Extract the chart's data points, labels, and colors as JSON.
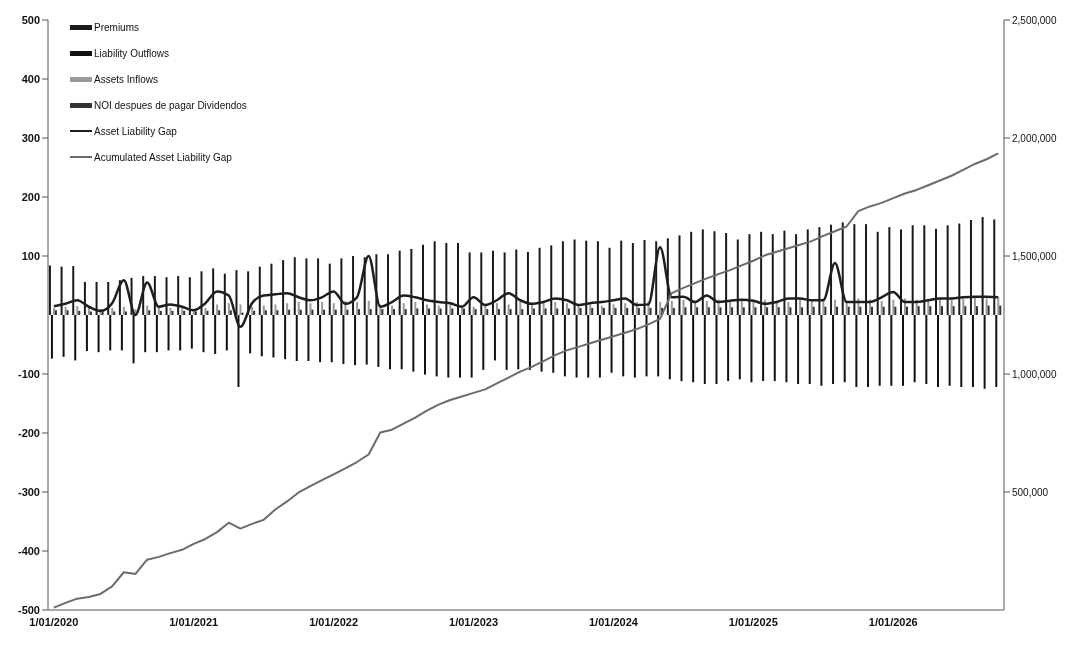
{
  "chart_data": {
    "type": "bar",
    "categories": [
      "1/01/2020",
      null,
      null,
      null,
      null,
      null,
      null,
      null,
      null,
      null,
      null,
      null,
      "1/01/2021",
      null,
      null,
      null,
      null,
      null,
      null,
      null,
      null,
      null,
      null,
      null,
      "1/01/2022",
      null,
      null,
      null,
      null,
      null,
      null,
      null,
      null,
      null,
      null,
      null,
      "1/01/2023",
      null,
      null,
      null,
      null,
      null,
      null,
      null,
      null,
      null,
      null,
      null,
      "1/01/2024",
      null,
      null,
      null,
      null,
      null,
      null,
      null,
      null,
      null,
      null,
      null,
      "1/01/2025",
      null,
      null,
      null,
      null,
      null,
      null,
      null,
      null,
      null,
      null,
      null,
      "1/01/2026",
      null,
      null,
      null,
      null,
      null,
      null,
      null,
      null,
      null
    ],
    "series": [
      {
        "name": "Premiums",
        "color": "#1a1a1a",
        "values": [
          84,
          82,
          83,
          56,
          56,
          56,
          59,
          63,
          66,
          66,
          64,
          66,
          64,
          74,
          79,
          70,
          76,
          74,
          82,
          87,
          93,
          98,
          96,
          96,
          87,
          96,
          100,
          98,
          103,
          103,
          109,
          112,
          119,
          125,
          122,
          122,
          106,
          106,
          109,
          106,
          111,
          107,
          114,
          118,
          125,
          128,
          126,
          125,
          114,
          126,
          122,
          127,
          125,
          130,
          135,
          141,
          145,
          142,
          139,
          128,
          137,
          141,
          137,
          143,
          137,
          145,
          149,
          153,
          157,
          154,
          154,
          141,
          149,
          145,
          152,
          152,
          146,
          152,
          155,
          161,
          166,
          162
        ]
      },
      {
        "name": "Liability Outflows",
        "color": "#111111",
        "values": [
          -74,
          -71,
          -77,
          -61,
          -63,
          -60,
          -60,
          -82,
          -63,
          -63,
          -60,
          -60,
          -57,
          -63,
          -66,
          -60,
          -122,
          -65,
          -70,
          -72,
          -75,
          -78,
          -78,
          -80,
          -80,
          -83,
          -85,
          -84,
          -88,
          -92,
          -92,
          -96,
          -101,
          -104,
          -106,
          -106,
          -106,
          -93,
          -77,
          -93,
          -92,
          -93,
          -96,
          -98,
          -104,
          -106,
          -106,
          -106,
          -98,
          -104,
          -106,
          -104,
          -104,
          -109,
          -112,
          -114,
          -117,
          -117,
          -112,
          -109,
          -114,
          -112,
          -112,
          -114,
          -117,
          -117,
          -120,
          -117,
          -114,
          -122,
          -122,
          -120,
          -120,
          -120,
          -114,
          -117,
          -122,
          -120,
          -122,
          -122,
          -125,
          -122
        ]
      },
      {
        "name": "Assets Inflows",
        "color": "#9a9a9a",
        "values": [
          12,
          14,
          15,
          12,
          10,
          12,
          14,
          10,
          16,
          14,
          12,
          12,
          10,
          12,
          18,
          20,
          18,
          14,
          16,
          18,
          20,
          22,
          20,
          22,
          20,
          24,
          22,
          24,
          18,
          16,
          20,
          22,
          18,
          16,
          18,
          16,
          14,
          16,
          20,
          18,
          22,
          20,
          24,
          22,
          20,
          18,
          18,
          16,
          18,
          20,
          22,
          24,
          22,
          24,
          26,
          22,
          24,
          26,
          22,
          24,
          22,
          26,
          24,
          22,
          26,
          24,
          28,
          26,
          24,
          28,
          26,
          24,
          26,
          28,
          26,
          24,
          28,
          26,
          28,
          30,
          28,
          30
        ]
      },
      {
        "name": "NOI despues de pagar Dividendos",
        "color": "#333333",
        "values": [
          8,
          8,
          7,
          6,
          6,
          6,
          6,
          null,
          8,
          7,
          7,
          7,
          6,
          7,
          8,
          8,
          4,
          7,
          8,
          8,
          9,
          9,
          9,
          9,
          9,
          9,
          10,
          10,
          10,
          10,
          10,
          11,
          11,
          11,
          11,
          11,
          10,
          10,
          10,
          10,
          10,
          11,
          11,
          11,
          11,
          12,
          12,
          12,
          12,
          12,
          12,
          12,
          12,
          12,
          13,
          13,
          13,
          13,
          13,
          13,
          13,
          13,
          13,
          13,
          13,
          14,
          14,
          14,
          14,
          14,
          14,
          14,
          14,
          14,
          15,
          15,
          15,
          15,
          15,
          15,
          16,
          16
        ]
      },
      {
        "name": "Asset Liability Gap",
        "type": "line",
        "color": "#1e1e1e",
        "values": [
          15,
          19,
          25,
          14,
          7,
          20,
          59,
          0,
          55,
          14,
          18,
          14,
          8,
          20,
          40,
          33,
          -20,
          20,
          33,
          35,
          37,
          30,
          25,
          30,
          40,
          19,
          30,
          100,
          14,
          22,
          33,
          30,
          25,
          22,
          20,
          14,
          30,
          17,
          25,
          37,
          25,
          19,
          22,
          28,
          25,
          17,
          20,
          22,
          25,
          28,
          17,
          18,
          115,
          30,
          31,
          22,
          33,
          22,
          24,
          26,
          24,
          19,
          22,
          28,
          28,
          25,
          25,
          88,
          22,
          22,
          22,
          30,
          39,
          22,
          22,
          25,
          28,
          28,
          30,
          31,
          31,
          30
        ]
      },
      {
        "name": "Acumulated Asset Liability Gap",
        "type": "line",
        "axis": "y2",
        "color": "#6b6b6b",
        "values": [
          10000,
          30000,
          48000,
          55000,
          68000,
          100000,
          160000,
          153000,
          213000,
          225000,
          241000,
          255000,
          280000,
          301000,
          330000,
          370000,
          345000,
          365000,
          382000,
          426000,
          460000,
          498000,
          525000,
          550000,
          575000,
          600000,
          627000,
          659000,
          752000,
          764000,
          790000,
          815000,
          845000,
          870000,
          890000,
          905000,
          920000,
          935000,
          960000,
          985000,
          1010000,
          1030000,
          1055000,
          1080000,
          1100000,
          1115000,
          1130000,
          1145000,
          1160000,
          1175000,
          1190000,
          1210000,
          1234000,
          1343000,
          1365000,
          1385000,
          1405000,
          1423000,
          1440000,
          1460000,
          1480000,
          1503000,
          1518000,
          1533000,
          1548000,
          1563000,
          1585000,
          1605000,
          1625000,
          1690000,
          1710000,
          1725000,
          1745000,
          1765000,
          1780000,
          1800000,
          1820000,
          1840000,
          1865000,
          1890000,
          1910000,
          1935000
        ]
      }
    ],
    "ylim": [
      -500,
      500
    ],
    "yticks": [
      -500,
      -400,
      -300,
      -200,
      -100,
      100,
      200,
      300,
      400,
      500
    ],
    "y2lim": [
      0,
      2500000
    ],
    "y2ticks": [
      {
        "value": 500000,
        "label": "500,000"
      },
      {
        "value": 1000000,
        "label": "1,000,000"
      },
      {
        "value": 1500000,
        "label": "1,500,000"
      },
      {
        "value": 2000000,
        "label": "2,000,000"
      },
      {
        "value": 2500000,
        "label": "2,500,000"
      }
    ],
    "legend": "top left",
    "grid": false,
    "marker": "none",
    "line_style": "solid"
  }
}
